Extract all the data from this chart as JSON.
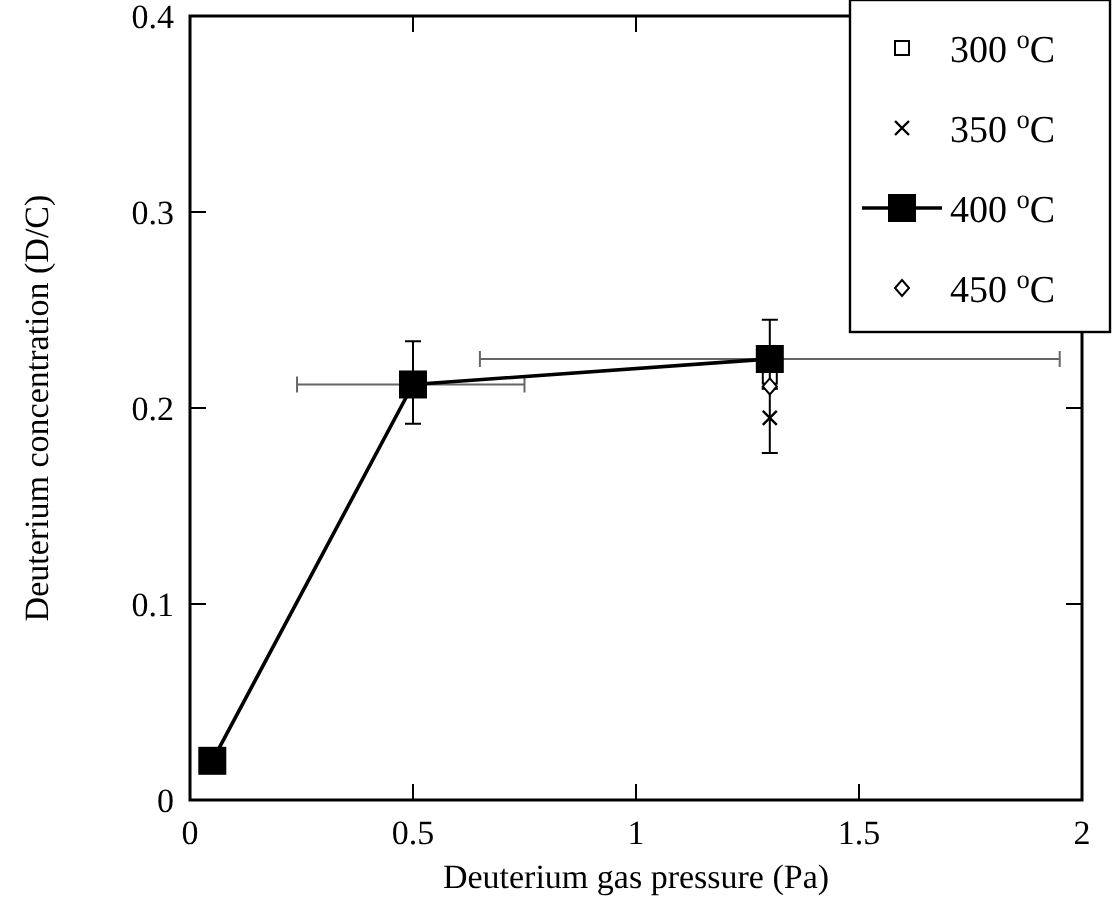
{
  "chart_data": {
    "type": "line",
    "xlabel": "Deuterium gas pressure (Pa)",
    "ylabel": "Deuterium concentration (D/C)",
    "xlim": [
      0,
      2
    ],
    "xticks": [
      0,
      0.5,
      1,
      1.5,
      2
    ],
    "ylim": [
      0,
      0.4
    ],
    "yticks": [
      0,
      0.1,
      0.2,
      0.3,
      0.4
    ],
    "legend": "top right",
    "grid": false,
    "series": [
      {
        "name": "300 $^{o}$C",
        "type": "scatter",
        "marker": "square",
        "color": "#000000",
        "x": [
          1.3
        ],
        "values": [
          0.216
        ]
      },
      {
        "name": "350 $^{o}$C",
        "type": "scatter",
        "marker": "cross",
        "color": "#000000",
        "x": [
          1.3
        ],
        "values": [
          0.195
        ],
        "errors": [
          [
            0.177,
            0.21
          ]
        ]
      },
      {
        "name": "400 $^{o}$C",
        "type": "line",
        "marker": "square",
        "line_style": "solid",
        "color": "#000000",
        "x": [
          0.05,
          0.5,
          1.3
        ],
        "values": [
          0.02,
          0.212,
          0.225
        ],
        "errors": [
          null,
          [
            0.192,
            0.234
          ],
          [
            0.21,
            0.245
          ]
        ],
        "xerrors": [
          null,
          [
            0.24,
            0.75
          ],
          [
            0.65,
            1.95
          ]
        ]
      },
      {
        "name": "450 $^{o}$C",
        "type": "scatter",
        "marker": "diamond",
        "color": "#000000",
        "x": [
          1.3
        ],
        "values": [
          0.211
        ]
      }
    ]
  }
}
